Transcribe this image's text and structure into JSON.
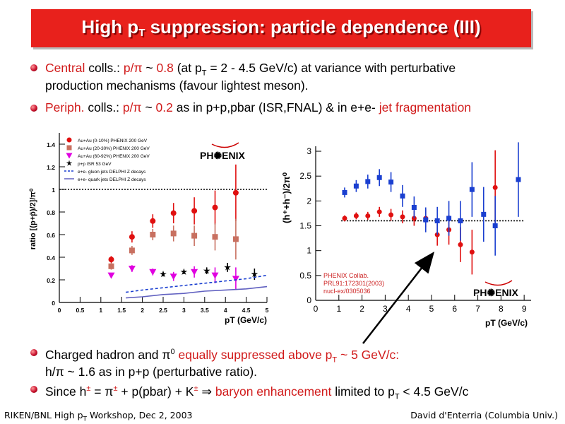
{
  "title": {
    "main": "High p",
    "sub": "T",
    "rest": " suppression: particle dependence (III)"
  },
  "bullets": {
    "b1": {
      "w1": "Central",
      "w2": " colls.: ",
      "w3": "p/π",
      "w4": " ~ ",
      "w5": "0.8",
      "w6": " (at p",
      "w7": "T",
      "w8": " = 2 - 4.5 GeV/c) at variance with perturbative",
      "line2": "production mechanisms (favour lightest meson)."
    },
    "b2": {
      "w1": "Periph.",
      "w2": " colls.: ",
      "w3": "p/π",
      "w4": " ~ ",
      "w5": "0.2",
      "w6": " as in p+p,pbar (ISR,FNAL) & in e+e- ",
      "w7": "jet fragmentation"
    },
    "b3": {
      "w1": "Charged hadron and π",
      "w2": "0",
      "w3": " equally suppressed above p",
      "w4": "T",
      "w5": " ~ 5 GeV/c:",
      "line2": "h/π ~ 1.6 as in p+p (perturbative ratio)."
    },
    "b4": {
      "w1": "Since h",
      "w2": "±",
      "w3": " = π",
      "w4": "±",
      "w5": " + p(pbar) + K",
      "w6": "±",
      "w7": " ⇒ ",
      "w8": "baryon enhancement",
      "w9": " limited to p",
      "w10": "T",
      "w11": " < 4.5 GeV/c"
    }
  },
  "footer": {
    "left_a": "RIKEN/BNL High p",
    "left_sub": "T",
    "left_b": " Workshop, Dec 2, 2003",
    "right": "David d'Enterria (Columbia Univ.)"
  },
  "colors": {
    "accent": "#e8211c",
    "red_text": "#d11b1b",
    "red_marker": "#e01010",
    "brown_marker": "#c87060",
    "magenta_marker": "#e000e0",
    "blue_marker": "#1a3fd0"
  },
  "chart_data": [
    {
      "type": "scatter",
      "ylabel": "ratio [(p+p̄)/2]/π⁰",
      "xlabel": "p_T (GeV/c)",
      "xlim": [
        0,
        5
      ],
      "ylim": [
        0,
        1.5
      ],
      "xticks": [
        "0",
        "0.5",
        "1",
        "1.5",
        "2",
        "2.5",
        "3",
        "3.5",
        "4",
        "4.5",
        "5"
      ],
      "yticks": [
        "0",
        "0.2",
        "0.4",
        "0.6",
        "0.8",
        "1",
        "1.2",
        "1.4"
      ],
      "logo": "PH✺ENIX",
      "legend": [
        "Au+Au (0-10%) PHENIX 200 GeV",
        "Au+Au (20-30%) PHENIX 200 GeV",
        "Au+Au (60-92%) PHENIX 200 GeV",
        "p+p ISR 53 GeV",
        "e+e- gluon jets DELPHI Z decays",
        "e+e- quark jets DELPHI Z decays"
      ],
      "series": [
        {
          "name": "Au+Au (0-10%) PHENIX 200 GeV",
          "marker": "circle",
          "color": "#e01010",
          "x": [
            1.25,
            1.75,
            2.25,
            2.75,
            3.25,
            3.75,
            4.25
          ],
          "y": [
            0.38,
            0.58,
            0.72,
            0.79,
            0.81,
            0.84,
            0.97
          ],
          "err": [
            0.03,
            0.05,
            0.06,
            0.09,
            0.12,
            0.15,
            0.25
          ]
        },
        {
          "name": "Au+Au (20-30%) PHENIX 200 GeV",
          "marker": "square",
          "color": "#c87060",
          "x": [
            1.25,
            1.75,
            2.25,
            2.75,
            3.25,
            3.75,
            4.25
          ],
          "y": [
            0.32,
            0.46,
            0.6,
            0.61,
            0.59,
            0.58,
            0.56
          ],
          "err": [
            0.03,
            0.04,
            0.05,
            0.07,
            0.09,
            0.12,
            0.18
          ]
        },
        {
          "name": "Au+Au (60-92%) PHENIX 200 GeV",
          "marker": "triangle",
          "color": "#e000e0",
          "x": [
            1.25,
            1.75,
            2.25,
            2.75,
            3.25,
            3.75,
            4.25
          ],
          "y": [
            0.24,
            0.3,
            0.27,
            0.23,
            0.27,
            0.24,
            0.21
          ],
          "err": [
            0.02,
            0.03,
            0.03,
            0.04,
            0.05,
            0.07,
            0.1
          ]
        },
        {
          "name": "p+p ISR 53 GeV",
          "marker": "star",
          "color": "#000000",
          "x": [
            2.5,
            3.0,
            3.55,
            4.05,
            4.7
          ],
          "y": [
            0.25,
            0.27,
            0.28,
            0.31,
            0.25
          ],
          "err": [
            0.02,
            0.02,
            0.03,
            0.04,
            0.05
          ]
        },
        {
          "name": "e+e- gluon jets DELPHI Z decays",
          "line": "dashed",
          "color": "#1a3fd0",
          "x": [
            1.6,
            2.0,
            2.5,
            3.0,
            3.5,
            4.0,
            4.5,
            5.0
          ],
          "y": [
            0.09,
            0.11,
            0.13,
            0.15,
            0.17,
            0.19,
            0.21,
            0.24
          ]
        },
        {
          "name": "e+e- quark jets DELPHI Z decays",
          "line": "solid",
          "color": "#6060c0",
          "x": [
            1.6,
            2.0,
            2.5,
            3.0,
            3.5,
            4.0,
            4.5,
            5.0
          ],
          "y": [
            0.04,
            0.05,
            0.07,
            0.08,
            0.1,
            0.11,
            0.12,
            0.14
          ]
        }
      ],
      "reference_line": {
        "y": 1.0,
        "style": "dotted"
      }
    },
    {
      "type": "scatter",
      "ylabel": "(h⁺+h⁻)/2π⁰",
      "xlabel": "p_T (GeV/c)",
      "xlim": [
        0,
        9.3
      ],
      "ylim": [
        0,
        3.1
      ],
      "xticks": [
        "0",
        "1",
        "2",
        "3",
        "4",
        "5",
        "6",
        "7",
        "8",
        "9"
      ],
      "yticks": [
        "0",
        "0.5",
        "1",
        "1.5",
        "2",
        "2.5",
        "3"
      ],
      "annotation": [
        "PHENIX Collab.",
        "PRL91:172301(2003)",
        "nucl-ex/0305036"
      ],
      "logo": "PH✺ENIX",
      "series": [
        {
          "name": "central",
          "marker": "circle",
          "color": "#e01010",
          "x": [
            1.25,
            1.75,
            2.25,
            2.75,
            3.25,
            3.75,
            4.25,
            4.75,
            5.25,
            5.75,
            6.25,
            6.75,
            7.75
          ],
          "y": [
            1.65,
            1.7,
            1.7,
            1.78,
            1.72,
            1.68,
            1.65,
            1.65,
            1.32,
            1.42,
            1.12,
            0.97,
            2.27
          ],
          "err": [
            0.06,
            0.07,
            0.08,
            0.1,
            0.12,
            0.13,
            0.15,
            0.18,
            0.22,
            0.3,
            0.35,
            0.45,
            0.75
          ]
        },
        {
          "name": "peripheral",
          "marker": "square",
          "color": "#1a3fd0",
          "x": [
            1.25,
            1.75,
            2.25,
            2.75,
            3.25,
            3.75,
            4.25,
            4.75,
            5.25,
            5.75,
            6.25,
            6.75,
            7.25,
            7.75,
            8.75
          ],
          "y": [
            2.17,
            2.3,
            2.39,
            2.47,
            2.38,
            2.1,
            1.87,
            1.62,
            1.6,
            1.65,
            1.6,
            2.23,
            1.73,
            1.5,
            2.43
          ],
          "err": [
            0.1,
            0.12,
            0.14,
            0.17,
            0.2,
            0.22,
            0.22,
            0.25,
            0.28,
            0.35,
            0.4,
            0.55,
            0.55,
            0.6,
            0.75
          ]
        }
      ],
      "reference_line": {
        "y": 1.6,
        "xrange": [
          1.1,
          9.0
        ],
        "style": "dotted"
      }
    }
  ]
}
